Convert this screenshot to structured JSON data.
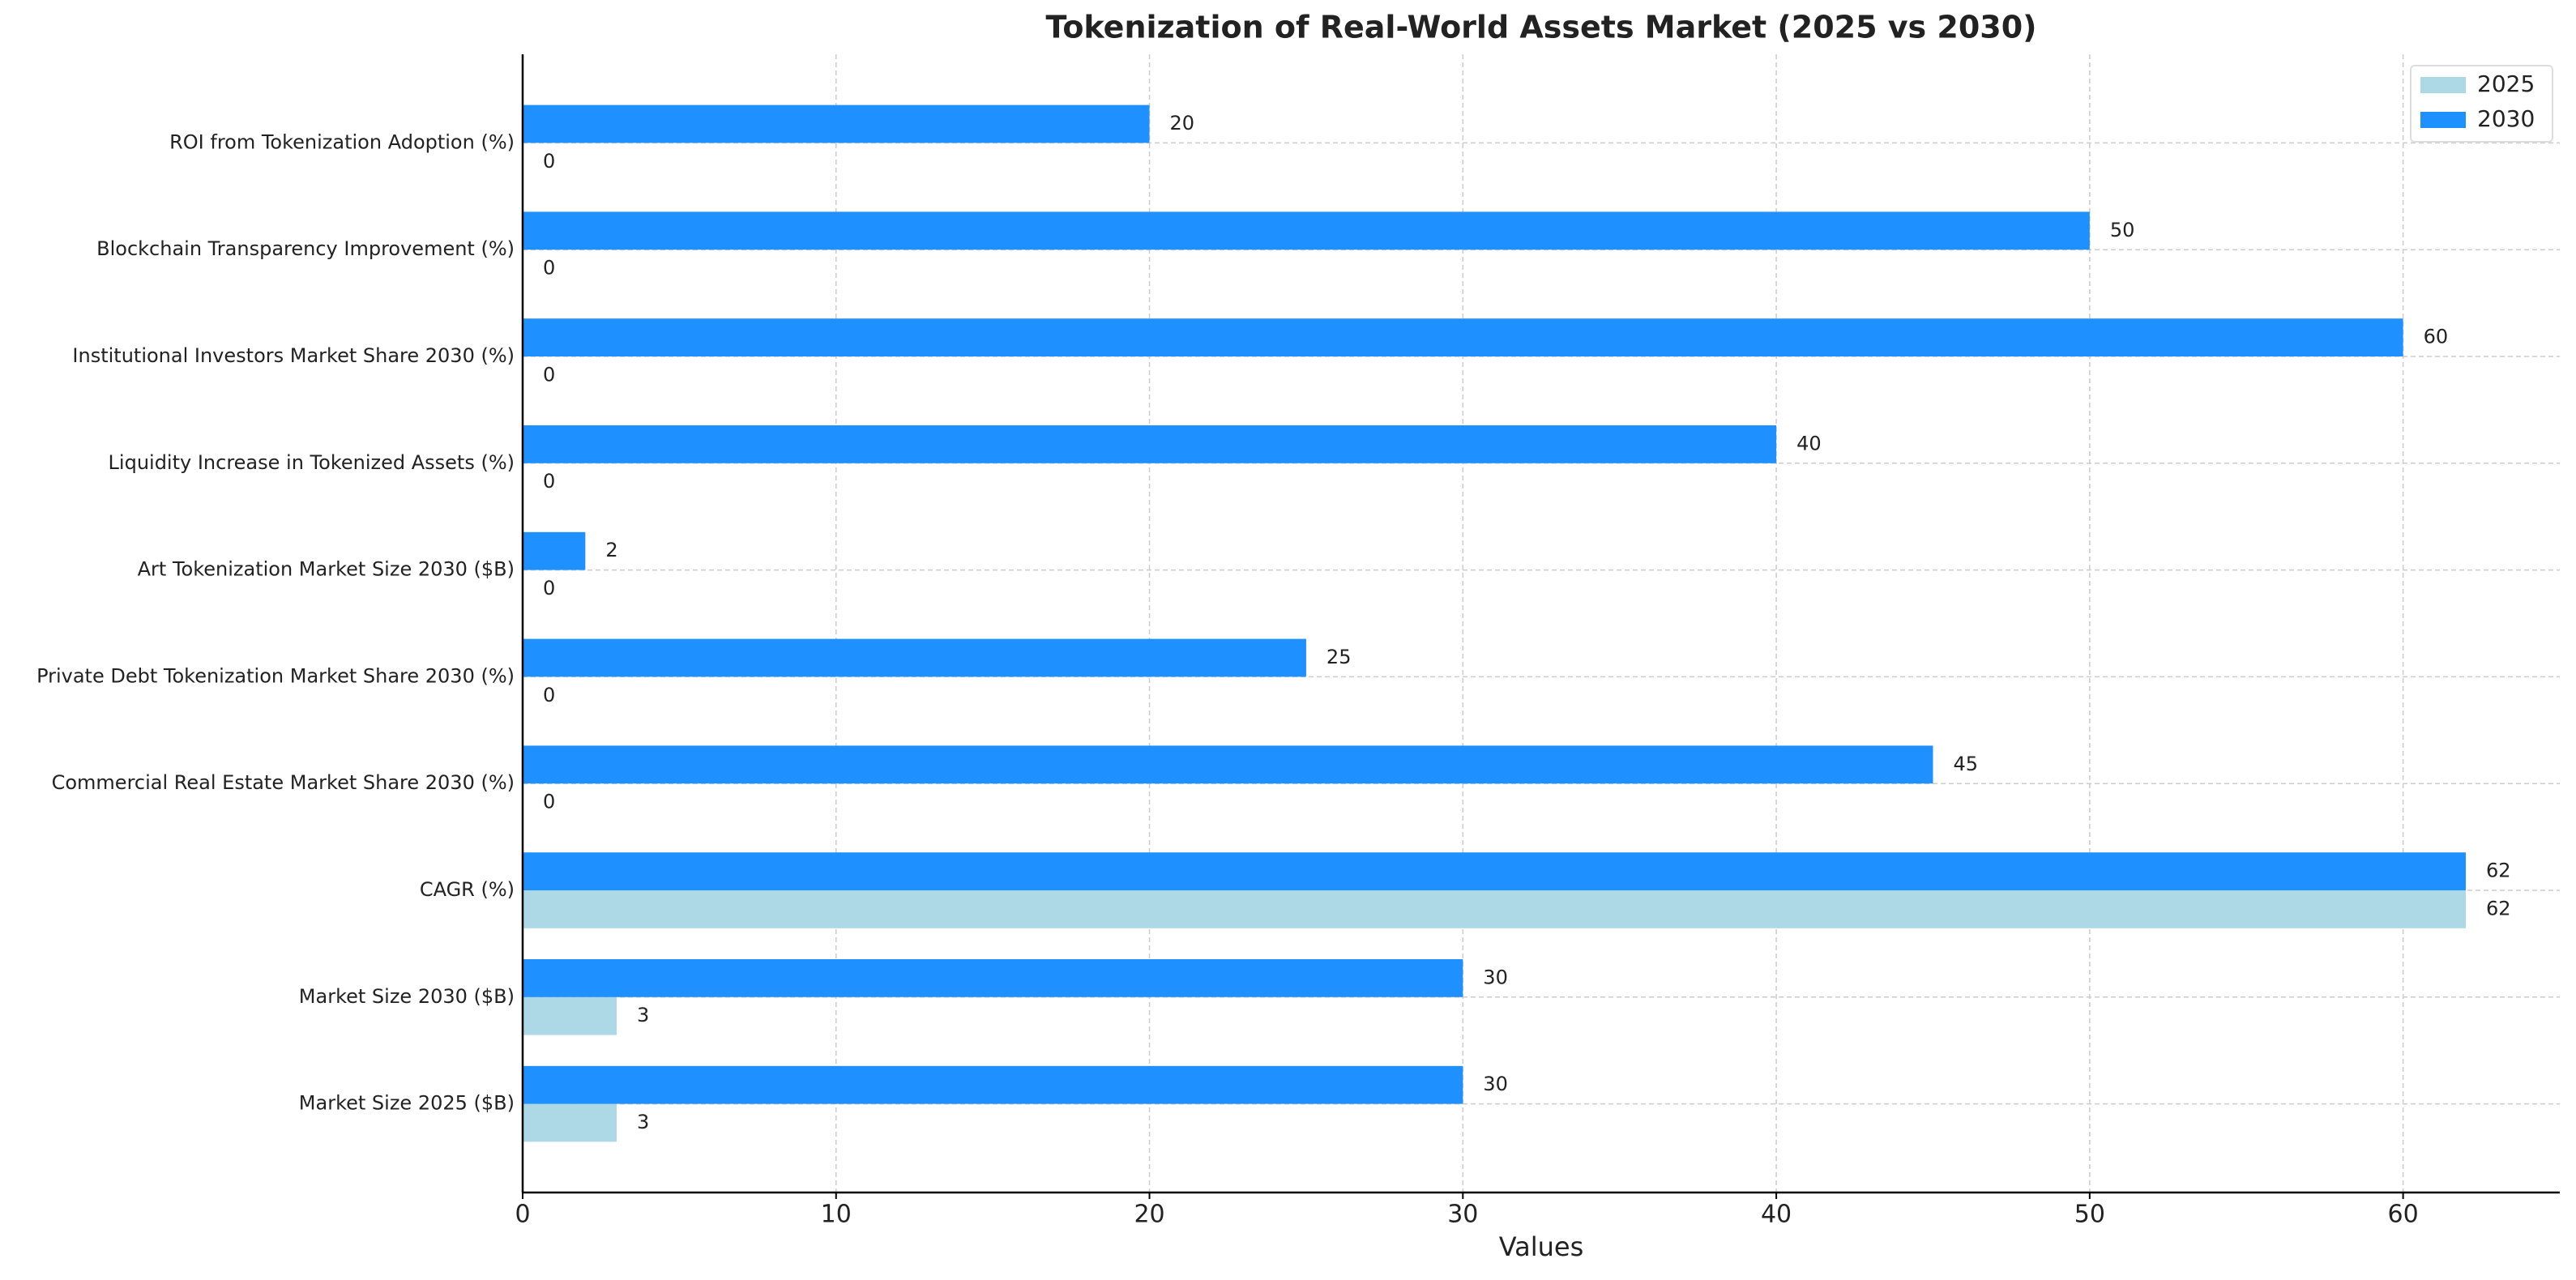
{
  "chart_data": {
    "type": "barh",
    "title": "Tokenization of Real-World Assets Market (2025 vs 2030)",
    "x_label": "Values",
    "categories": [
      "Market Size 2025 ($B)",
      "Market Size 2030 ($B)",
      "CAGR (%)",
      "Commercial Real Estate Market Share 2030 (%)",
      "Private Debt Tokenization Market Share 2030 (%)",
      "Art Tokenization Market Size 2030 ($B)",
      "Liquidity Increase in Tokenized Assets (%)",
      "Institutional Investors Market Share 2030 (%)",
      "Blockchain Transparency Improvement (%)",
      "ROI from Tokenization Adoption (%)"
    ],
    "series": [
      {
        "name": "2025",
        "color": "#add8e6",
        "values": [
          3,
          3,
          62,
          0,
          0,
          0,
          0,
          0,
          0,
          0
        ]
      },
      {
        "name": "2030",
        "color": "#1e90ff",
        "values": [
          30,
          30,
          62,
          45,
          25,
          2,
          40,
          60,
          50,
          20
        ]
      }
    ],
    "xlim": [
      0,
      65
    ],
    "xticks": [
      0,
      10,
      20,
      30,
      40,
      50,
      60
    ],
    "grid": true,
    "legend": "upper right"
  }
}
